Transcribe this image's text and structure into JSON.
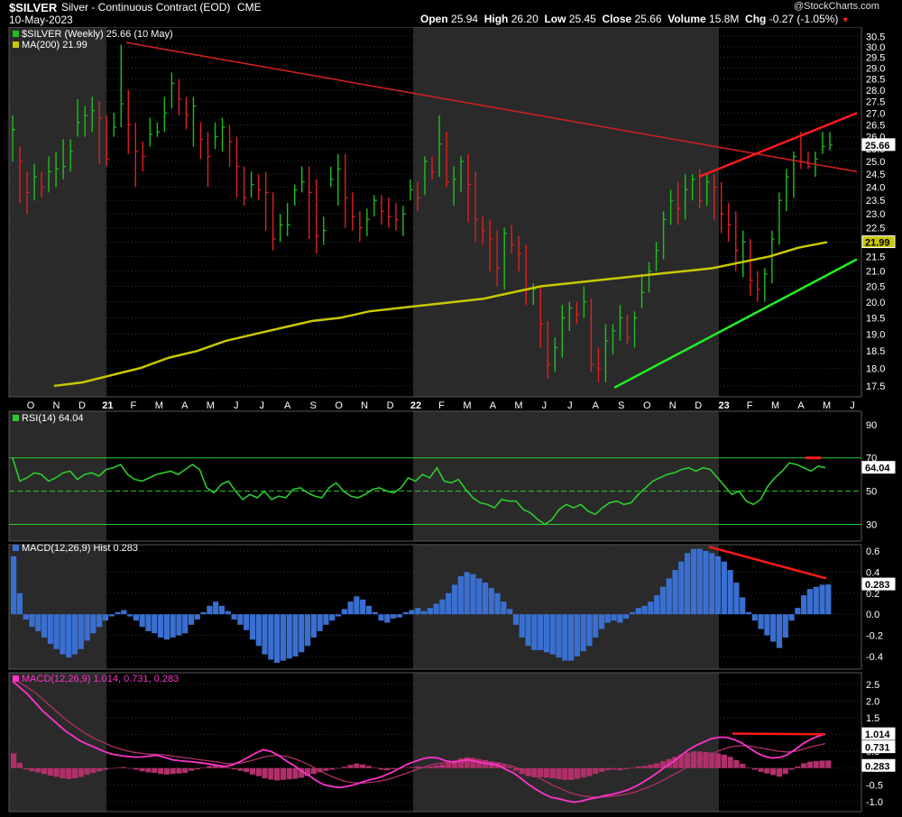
{
  "header": {
    "symbol": "$SILVER",
    "name": "Silver - Continuous Contract (EOD)",
    "exchange": "CME",
    "date": "10-May-2023",
    "watermark": "@StockCharts.com",
    "open_label": "Open",
    "open": "25.94",
    "high_label": "High",
    "high": "26.20",
    "low_label": "Low",
    "low": "25.45",
    "close_label": "Close",
    "close": "25.66",
    "volume_label": "Volume",
    "volume": "15.8M",
    "chg_label": "Chg",
    "chg": "-0.27 (-1.05%)",
    "chg_icon": "down-triangle-icon"
  },
  "colors": {
    "background": "#000000",
    "shade": "#2a2a2a",
    "up_bar": "#1fbf1f",
    "down_bar": "#e02020",
    "ma200": "#c8c800",
    "trend_red": "#ff1a1a",
    "trend_green": "#22ee22",
    "rsi": "#2ccc2c",
    "hist": "#3a6fd0",
    "macd_line": "#ff33cc",
    "macd_signal": "#b0306a",
    "macd_hist": "#b0306a",
    "grid": "#333333",
    "text": "#ffffff"
  },
  "chart_data": [
    {
      "type": "line",
      "panel": "price",
      "legend": [
        {
          "label": "$SILVER (Weekly) 25.66 (10 May)",
          "color": "#1fbf1f"
        },
        {
          "label": "MA(200) 21.99",
          "color": "#c8c800"
        }
      ],
      "x_tick_labels": [
        "O",
        "N",
        "D",
        "21",
        "F",
        "M",
        "A",
        "M",
        "J",
        "J",
        "A",
        "S",
        "O",
        "N",
        "D",
        "22",
        "F",
        "M",
        "A",
        "M",
        "J",
        "J",
        "A",
        "S",
        "O",
        "N",
        "D",
        "23",
        "F",
        "M",
        "A",
        "M",
        "J"
      ],
      "y_ticks": [
        "17.5",
        "18.0",
        "18.5",
        "19.0",
        "19.5",
        "20.0",
        "20.5",
        "21.0",
        "21.5",
        "22.0",
        "22.5",
        "23.0",
        "23.5",
        "24.0",
        "24.5",
        "25.0",
        "25.5",
        "26.0",
        "26.5",
        "27.0",
        "27.5",
        "28.0",
        "28.5",
        "29.0",
        "29.5",
        "30.0",
        "30.5"
      ],
      "ylim": [
        17.2,
        30.6
      ],
      "scale": "log",
      "last_close_tag": "25.66",
      "ma_tag": "21.99",
      "weekly_close": [
        26.3,
        25.0,
        23.8,
        24.4,
        24.0,
        24.6,
        24.7,
        24.8,
        25.4,
        26.6,
        26.9,
        27.1,
        26.8,
        25.1,
        26.4,
        27.4,
        26.5,
        25.4,
        25.2,
        26.1,
        26.2,
        27.0,
        28.3,
        27.6,
        26.9,
        27.3,
        25.9,
        25.2,
        26.0,
        26.4,
        25.8,
        24.8,
        23.6,
        24.1,
        23.9,
        23.8,
        22.1,
        22.6,
        22.6,
        23.9,
        24.2,
        23.8,
        22.2,
        22.4,
        24.3,
        24.7,
        23.6,
        22.9,
        22.5,
        22.8,
        23.5,
        23.1,
        22.9,
        22.8,
        23.0,
        23.9,
        23.6,
        25.0,
        24.6,
        25.7,
        24.2,
        24.3,
        25.0,
        24.1,
        22.8,
        22.4,
        22.1,
        21.1,
        22.3,
        21.9,
        21.6,
        20.4,
        20.4,
        19.3,
        18.1,
        18.6,
        19.5,
        19.8,
        19.6,
        20.0,
        18.1,
        18.0,
        18.8,
        19.1,
        19.5,
        18.9,
        19.5,
        20.3,
        21.0,
        21.7,
        22.8,
        23.5,
        23.2,
        23.9,
        24.3,
        23.5,
        24.2,
        24.0,
        23.0,
        22.6,
        21.7,
        22.0,
        20.7,
        20.4,
        20.9,
        22.1,
        23.5,
        24.4,
        25.2,
        25.0,
        24.8,
        25.1,
        25.6,
        25.66
      ],
      "weekly_high": [
        26.9,
        25.6,
        24.6,
        24.9,
        24.6,
        25.2,
        25.4,
        25.9,
        25.9,
        27.6,
        27.3,
        27.7,
        27.5,
        26.9,
        27.0,
        30.1,
        28.0,
        26.6,
        25.8,
        26.8,
        26.6,
        27.7,
        28.8,
        28.5,
        27.7,
        27.7,
        26.6,
        26.2,
        26.6,
        26.8,
        26.5,
        26.0,
        24.8,
        24.6,
        24.5,
        24.6,
        23.8,
        23.0,
        23.4,
        24.1,
        24.8,
        24.8,
        24.3,
        22.9,
        24.8,
        25.3,
        25.3,
        23.8,
        23.1,
        23.2,
        23.7,
        23.7,
        23.6,
        23.4,
        23.3,
        24.3,
        24.2,
        25.2,
        25.2,
        26.9,
        26.2,
        24.8,
        25.2,
        25.3,
        24.6,
        22.9,
        22.8,
        22.4,
        22.5,
        22.6,
        22.2,
        21.9,
        20.6,
        20.5,
        19.4,
        18.9,
        19.9,
        20.0,
        20.0,
        20.5,
        20.1,
        18.6,
        19.3,
        19.3,
        19.9,
        19.6,
        19.7,
        20.9,
        21.3,
        22.0,
        23.1,
        23.9,
        24.2,
        24.5,
        24.5,
        24.7,
        24.5,
        24.5,
        24.2,
        23.4,
        23.1,
        22.4,
        22.1,
        21.0,
        21.1,
        22.4,
        23.8,
        24.7,
        25.4,
        26.2,
        25.4,
        25.4,
        26.2,
        26.2
      ],
      "weekly_low": [
        25.0,
        23.4,
        23.0,
        23.5,
        23.6,
        23.8,
        24.0,
        24.3,
        24.6,
        26.0,
        26.0,
        26.2,
        24.9,
        24.8,
        26.0,
        26.4,
        25.3,
        24.0,
        24.6,
        25.6,
        26.0,
        26.2,
        27.2,
        26.9,
        26.3,
        25.6,
        25.1,
        24.0,
        25.5,
        25.4,
        24.8,
        23.6,
        23.3,
        23.6,
        23.5,
        22.4,
        21.7,
        22.0,
        22.2,
        23.3,
        23.8,
        22.1,
        21.6,
        21.9,
        24.0,
        23.3,
        22.5,
        22.4,
        22.0,
        22.2,
        22.9,
        22.6,
        22.5,
        22.4,
        22.2,
        23.5,
        23.1,
        23.7,
        24.3,
        24.4,
        24.0,
        23.3,
        23.8,
        22.7,
        22.0,
        21.9,
        21.0,
        20.5,
        20.4,
        21.6,
        21.0,
        19.9,
        19.9,
        18.6,
        17.7,
        17.9,
        18.3,
        19.1,
        19.3,
        19.5,
        17.9,
        17.6,
        17.6,
        18.4,
        18.8,
        18.7,
        18.6,
        19.8,
        20.3,
        21.0,
        21.4,
        22.6,
        22.6,
        22.8,
        23.5,
        23.2,
        23.3,
        22.8,
        22.3,
        22.0,
        21.0,
        20.8,
        20.2,
        20.0,
        20.0,
        20.6,
        21.9,
        23.1,
        23.6,
        24.7,
        24.7,
        24.4,
        25.3,
        25.45
      ],
      "ma200": [
        17.5,
        17.6,
        17.8,
        18.0,
        18.3,
        18.5,
        18.8,
        19.0,
        19.2,
        19.4,
        19.5,
        19.7,
        19.8,
        19.9,
        20.0,
        20.1,
        20.3,
        20.5,
        20.6,
        20.7,
        20.8,
        20.9,
        21.0,
        21.1,
        21.3,
        21.5,
        21.8,
        21.99
      ]
    },
    {
      "type": "line",
      "panel": "rsi",
      "legend": [
        {
          "label": "RSI(14) 64.04",
          "color": "#2ccc2c"
        }
      ],
      "y_ticks": [
        "30",
        "50",
        "70",
        "90"
      ],
      "ylim": [
        20,
        98
      ],
      "levels": [
        30,
        70
      ],
      "last_tag": "64.04",
      "values": [
        70,
        56,
        58,
        61,
        60,
        56,
        58,
        61,
        62,
        57,
        60,
        61,
        59,
        63,
        64,
        66,
        60,
        57,
        56,
        58,
        60,
        61,
        62,
        60,
        63,
        66,
        63,
        52,
        49,
        54,
        56,
        50,
        45,
        48,
        46,
        50,
        45,
        47,
        46,
        51,
        52,
        49,
        47,
        46,
        52,
        55,
        50,
        47,
        46,
        48,
        51,
        52,
        50,
        49,
        52,
        58,
        56,
        60,
        58,
        64,
        56,
        55,
        57,
        51,
        46,
        43,
        42,
        40,
        45,
        44,
        44,
        39,
        37,
        33,
        30,
        33,
        39,
        42,
        40,
        42,
        38,
        36,
        40,
        43,
        44,
        42,
        43,
        48,
        52,
        56,
        58,
        60,
        61,
        63,
        64,
        62,
        64,
        63,
        58,
        53,
        48,
        50,
        44,
        42,
        45,
        53,
        58,
        62,
        67,
        66,
        64,
        62,
        65,
        64.04
      ],
      "annotation": "red marker at 70 line, recent"
    },
    {
      "type": "bar",
      "panel": "macd_hist",
      "legend": [
        {
          "label": "MACD(12,26,9) Hist 0.283",
          "color": "#3a6fd0"
        }
      ],
      "y_ticks": [
        "-0.4",
        "-0.2",
        "0.0",
        "0.2",
        "0.4",
        "0.6"
      ],
      "ylim": [
        -0.52,
        0.66
      ],
      "last_tag": "0.283",
      "values": [
        0.55,
        0.2,
        -0.05,
        -0.12,
        -0.16,
        -0.22,
        -0.28,
        -0.33,
        -0.38,
        -0.41,
        -0.38,
        -0.33,
        -0.25,
        -0.18,
        -0.12,
        -0.06,
        -0.02,
        0.02,
        0.04,
        -0.02,
        -0.06,
        -0.12,
        -0.16,
        -0.18,
        -0.22,
        -0.24,
        -0.22,
        -0.2,
        -0.18,
        -0.1,
        -0.05,
        0.02,
        0.08,
        0.12,
        0.08,
        0.03,
        -0.05,
        -0.1,
        -0.15,
        -0.24,
        -0.3,
        -0.38,
        -0.43,
        -0.46,
        -0.44,
        -0.42,
        -0.4,
        -0.36,
        -0.3,
        -0.22,
        -0.16,
        -0.1,
        -0.06,
        -0.02,
        0.05,
        0.12,
        0.17,
        0.14,
        0.08,
        0.02,
        -0.06,
        -0.08,
        -0.04,
        -0.03,
        0.02,
        0.04,
        0.06,
        0.03,
        0.06,
        0.1,
        0.14,
        0.2,
        0.28,
        0.36,
        0.4,
        0.38,
        0.34,
        0.3,
        0.25,
        0.2,
        0.12,
        0.05,
        -0.1,
        -0.22,
        -0.3,
        -0.34,
        -0.34,
        -0.36,
        -0.38,
        -0.41,
        -0.44,
        -0.44,
        -0.4,
        -0.35,
        -0.3,
        -0.22,
        -0.14,
        -0.08,
        -0.06,
        -0.08,
        -0.04,
        0.02,
        0.06,
        0.08,
        0.12,
        0.18,
        0.26,
        0.34,
        0.42,
        0.5,
        0.58,
        0.62,
        0.62,
        0.6,
        0.58,
        0.55,
        0.5,
        0.42,
        0.3,
        0.16,
        0.02,
        -0.06,
        -0.14,
        -0.2,
        -0.26,
        -0.32,
        -0.22,
        -0.06,
        0.06,
        0.18,
        0.24,
        0.26,
        0.28,
        0.283
      ]
    },
    {
      "type": "line",
      "panel": "macd",
      "legend": [
        {
          "label": "MACD(12,26,9) 1.014, 0.731, 0.283",
          "color": "#ff33cc"
        }
      ],
      "y_ticks": [
        "-1.0",
        "-0.5",
        "0.0",
        "0.5",
        "1.0",
        "1.5",
        "2.0",
        "2.5"
      ],
      "ylim": [
        -1.3,
        2.85
      ],
      "tags": [
        "1.014",
        "0.731",
        "0.283"
      ],
      "macd": [
        2.6,
        2.4,
        2.2,
        1.95,
        1.7,
        1.5,
        1.3,
        1.1,
        0.95,
        0.8,
        0.7,
        0.6,
        0.5,
        0.42,
        0.38,
        0.35,
        0.33,
        0.33,
        0.36,
        0.38,
        0.32,
        0.25,
        0.22,
        0.2,
        0.18,
        0.15,
        0.12,
        0.08,
        0.05,
        0.1,
        0.2,
        0.32,
        0.45,
        0.55,
        0.5,
        0.38,
        0.22,
        0.08,
        -0.08,
        -0.22,
        -0.38,
        -0.5,
        -0.55,
        -0.58,
        -0.55,
        -0.5,
        -0.42,
        -0.35,
        -0.3,
        -0.22,
        -0.12,
        0.0,
        0.12,
        0.2,
        0.28,
        0.32,
        0.3,
        0.22,
        0.18,
        0.22,
        0.25,
        0.2,
        0.15,
        0.12,
        0.08,
        -0.05,
        -0.15,
        -0.32,
        -0.5,
        -0.65,
        -0.78,
        -0.88,
        -0.92,
        -0.98,
        -1.02,
        -0.98,
        -0.92,
        -0.88,
        -0.82,
        -0.78,
        -0.72,
        -0.65,
        -0.55,
        -0.42,
        -0.28,
        -0.12,
        0.05,
        0.2,
        0.38,
        0.55,
        0.68,
        0.78,
        0.88,
        0.92,
        0.92,
        0.85,
        0.75,
        0.6,
        0.45,
        0.35,
        0.3,
        0.32,
        0.4,
        0.55,
        0.72,
        0.85,
        0.95,
        1.014
      ],
      "signal": [
        2.7,
        2.55,
        2.4,
        2.25,
        2.05,
        1.85,
        1.65,
        1.45,
        1.28,
        1.12,
        0.98,
        0.86,
        0.76,
        0.66,
        0.58,
        0.52,
        0.47,
        0.44,
        0.42,
        0.41,
        0.39,
        0.36,
        0.33,
        0.3,
        0.27,
        0.24,
        0.21,
        0.18,
        0.14,
        0.13,
        0.15,
        0.2,
        0.26,
        0.33,
        0.37,
        0.38,
        0.35,
        0.29,
        0.2,
        0.1,
        -0.02,
        -0.14,
        -0.25,
        -0.34,
        -0.41,
        -0.44,
        -0.45,
        -0.43,
        -0.4,
        -0.36,
        -0.3,
        -0.22,
        -0.14,
        -0.06,
        0.02,
        0.09,
        0.14,
        0.16,
        0.17,
        0.18,
        0.2,
        0.2,
        0.19,
        0.17,
        0.15,
        0.1,
        0.04,
        -0.04,
        -0.14,
        -0.26,
        -0.38,
        -0.5,
        -0.6,
        -0.7,
        -0.78,
        -0.83,
        -0.86,
        -0.87,
        -0.86,
        -0.84,
        -0.81,
        -0.77,
        -0.71,
        -0.63,
        -0.54,
        -0.44,
        -0.32,
        -0.2,
        -0.08,
        0.05,
        0.18,
        0.3,
        0.42,
        0.52,
        0.6,
        0.65,
        0.67,
        0.66,
        0.62,
        0.58,
        0.54,
        0.5,
        0.48,
        0.5,
        0.56,
        0.63,
        0.68,
        0.731
      ]
    }
  ]
}
